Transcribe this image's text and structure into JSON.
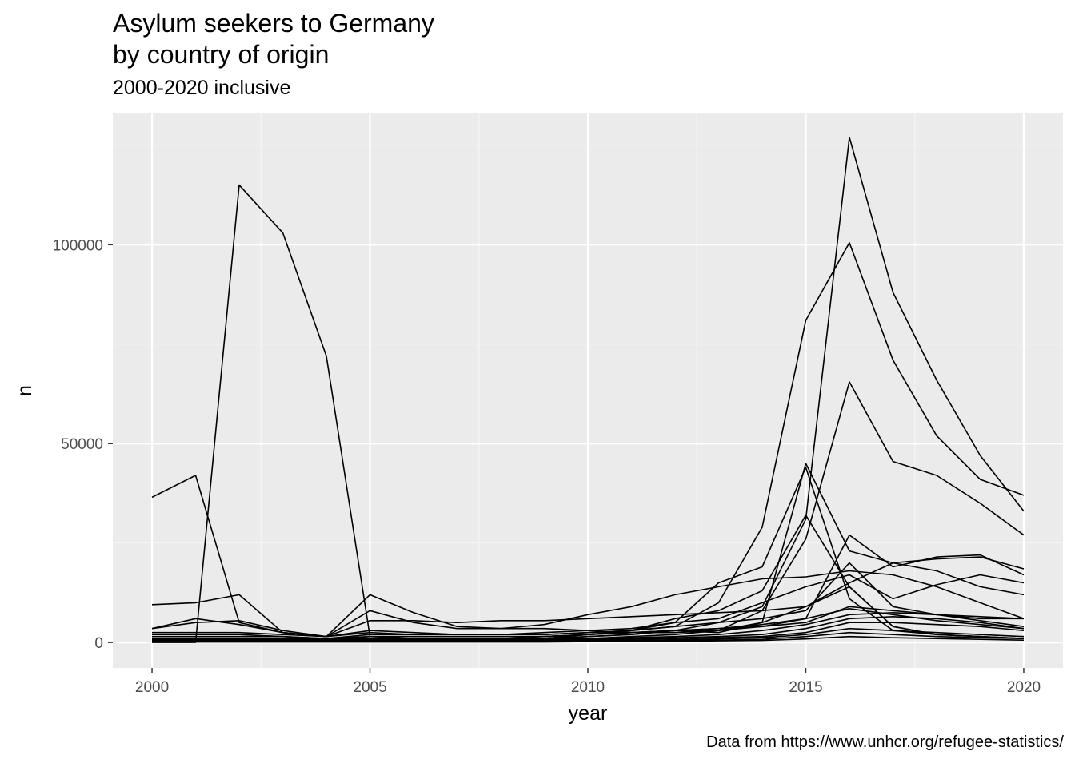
{
  "chart_data": {
    "type": "line",
    "title_lines": [
      "Asylum seekers to Germany",
      "by country of origin"
    ],
    "subtitle": "2000-2020 inclusive",
    "caption": "Data from https://www.unhcr.org/refugee-statistics/",
    "xlabel": "year",
    "ylabel": "n",
    "xlim": [
      1999.1,
      2020.9
    ],
    "ylim": [
      -6400,
      133000
    ],
    "x_ticks": [
      2000,
      2005,
      2010,
      2015,
      2020
    ],
    "y_ticks": [
      0,
      50000,
      100000
    ],
    "y_tick_labels": [
      "0",
      "50000",
      "100000"
    ],
    "grid": true,
    "legend": "none",
    "colors": {
      "panel": "#ebebeb",
      "grid_major": "#ffffff",
      "grid_minor": "#f5f5f5",
      "line": "#000000",
      "tick_text": "#4d4d4d"
    },
    "x": [
      2000,
      2001,
      2002,
      2003,
      2004,
      2005,
      2006,
      2007,
      2008,
      2009,
      2010,
      2011,
      2012,
      2013,
      2014,
      2015,
      2016,
      2017,
      2018,
      2019,
      2020
    ],
    "series": [
      {
        "values": [
          0,
          0,
          115000,
          103000,
          72000,
          1500,
          1000,
          800,
          800,
          900,
          1500,
          2000,
          3000,
          2500,
          5000,
          9000,
          14000,
          4000,
          2000,
          1500,
          1000
        ]
      },
      {
        "values": [
          36500,
          42000,
          5000,
          2500,
          1500,
          12000,
          7500,
          4000,
          3500,
          3500,
          3000,
          2500,
          2500,
          3000,
          4000,
          6000,
          8500,
          7000,
          5500,
          4500,
          3500
        ]
      },
      {
        "values": [
          9500,
          10000,
          12000,
          2500,
          1500,
          8000,
          5000,
          3500,
          3500,
          4500,
          7000,
          9000,
          12000,
          14000,
          16000,
          16500,
          18000,
          17000,
          14000,
          10000,
          6000
        ]
      },
      {
        "values": [
          3500,
          5000,
          5500,
          3000,
          1500,
          5500,
          5500,
          5000,
          5500,
          5500,
          6000,
          6500,
          7000,
          7500,
          8000,
          9000,
          15000,
          20000,
          21000,
          21500,
          18500
        ]
      },
      {
        "values": [
          2000,
          2000,
          2000,
          1500,
          1000,
          2000,
          2000,
          2000,
          2000,
          2000,
          2500,
          3000,
          4000,
          10000,
          29000,
          81000,
          100500,
          71000,
          52000,
          41000,
          37000
        ]
      },
      {
        "values": [
          1000,
          1000,
          1000,
          1000,
          800,
          1000,
          1000,
          1000,
          1000,
          1500,
          2000,
          2500,
          3000,
          5000,
          9000,
          31000,
          127000,
          88000,
          66000,
          47000,
          33000
        ]
      },
      {
        "values": [
          1000,
          1000,
          1000,
          1000,
          800,
          1000,
          1000,
          1000,
          1000,
          1000,
          1500,
          2000,
          3000,
          3000,
          8000,
          26000,
          65500,
          45500,
          42000,
          35000,
          27000
        ]
      },
      {
        "values": [
          500,
          500,
          500,
          500,
          500,
          1000,
          1000,
          1000,
          1000,
          1000,
          2000,
          3000,
          5000,
          15000,
          19000,
          44000,
          11000,
          3000,
          2000,
          1500,
          1000
        ]
      },
      {
        "values": [
          500,
          500,
          500,
          500,
          500,
          1000,
          1000,
          1000,
          1000,
          1000,
          2000,
          3000,
          6000,
          8000,
          13000,
          32000,
          14000,
          4000,
          2000,
          1500,
          1000
        ]
      },
      {
        "values": [
          500,
          500,
          500,
          500,
          500,
          500,
          500,
          500,
          500,
          500,
          1000,
          1500,
          2000,
          3000,
          5000,
          45000,
          23000,
          20000,
          18000,
          14000,
          12000
        ]
      },
      {
        "values": [
          1500,
          1500,
          1500,
          1500,
          1000,
          1500,
          1500,
          1500,
          1500,
          1500,
          2000,
          2500,
          3000,
          3500,
          4500,
          6000,
          27000,
          19000,
          21500,
          22000,
          17000
        ]
      },
      {
        "values": [
          2500,
          2500,
          2500,
          2000,
          1500,
          2500,
          2000,
          2000,
          2000,
          2000,
          2500,
          3000,
          4000,
          5000,
          6000,
          8000,
          20000,
          9000,
          7000,
          6000,
          6000
        ]
      },
      {
        "values": [
          3500,
          6000,
          4500,
          2500,
          1500,
          3000,
          2500,
          2000,
          2000,
          2500,
          3000,
          3500,
          5000,
          6000,
          10000,
          14000,
          17000,
          11000,
          14500,
          17000,
          15000
        ]
      },
      {
        "values": [
          1000,
          1000,
          1000,
          1000,
          800,
          1500,
          1500,
          1500,
          1500,
          1500,
          2000,
          2500,
          3000,
          3500,
          4000,
          5000,
          9000,
          8000,
          7000,
          6500,
          6000
        ]
      },
      {
        "values": [
          800,
          800,
          800,
          800,
          600,
          800,
          800,
          800,
          800,
          800,
          1000,
          1200,
          1500,
          2000,
          3000,
          4500,
          7000,
          7500,
          7000,
          5500,
          4000
        ]
      },
      {
        "values": [
          600,
          600,
          600,
          600,
          500,
          600,
          600,
          600,
          600,
          600,
          800,
          1000,
          1200,
          1500,
          2000,
          3500,
          6000,
          6500,
          6000,
          5000,
          3500
        ]
      },
      {
        "values": [
          400,
          400,
          400,
          400,
          300,
          400,
          400,
          400,
          400,
          400,
          600,
          800,
          1000,
          1200,
          1500,
          2500,
          5000,
          5000,
          4500,
          4000,
          3000
        ]
      },
      {
        "values": [
          300,
          300,
          300,
          300,
          200,
          300,
          300,
          300,
          300,
          300,
          400,
          500,
          700,
          900,
          1200,
          2000,
          3500,
          3000,
          2500,
          2000,
          1500
        ]
      },
      {
        "values": [
          200,
          200,
          200,
          200,
          200,
          200,
          200,
          200,
          200,
          200,
          300,
          400,
          500,
          600,
          800,
          1500,
          2500,
          2000,
          1500,
          1200,
          1000
        ]
      },
      {
        "values": [
          100,
          100,
          100,
          100,
          100,
          100,
          100,
          100,
          100,
          100,
          200,
          200,
          300,
          400,
          500,
          900,
          1500,
          1200,
          1000,
          800,
          600
        ]
      }
    ]
  }
}
